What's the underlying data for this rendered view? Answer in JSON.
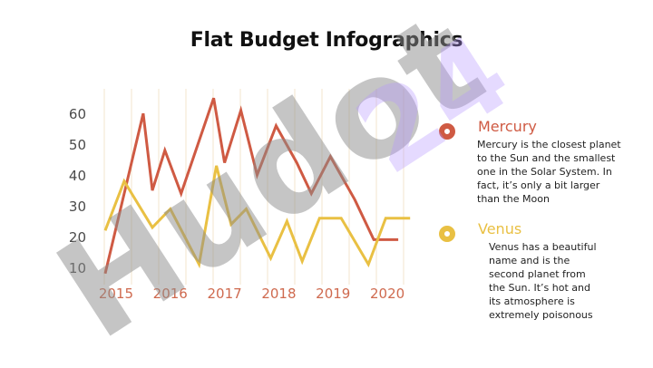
{
  "title": "Flat Budget Infographics",
  "colors": {
    "mercury": "#cf5a43",
    "venus": "#e9c043",
    "grid": "#f3e6cc",
    "axis_text": "#4a4a4a",
    "year_text": "#cf6a4f"
  },
  "chart_data": {
    "type": "line",
    "x_ticks": [
      "2015",
      "2016",
      "2017",
      "2018",
      "2019",
      "2020"
    ],
    "y_ticks": [
      10,
      20,
      30,
      40,
      50,
      60
    ],
    "ylim": [
      5,
      68
    ],
    "xlim": [
      2014.7,
      2020.55
    ],
    "grid": "vertical",
    "series": [
      {
        "name": "Mercury",
        "color": "#cf5a43",
        "x": [
          2014.8,
          2015.5,
          2015.67,
          2015.9,
          2016.2,
          2016.8,
          2017.0,
          2017.3,
          2017.6,
          2017.95,
          2018.33,
          2018.6,
          2018.95,
          2019.4,
          2019.75,
          2020.2
        ],
        "y": [
          8,
          60,
          35,
          48,
          34,
          65,
          44,
          61,
          40,
          56,
          44,
          34,
          46,
          32,
          19,
          19
        ]
      },
      {
        "name": "Venus",
        "color": "#e9c043",
        "x": [
          2014.8,
          2015.15,
          2015.67,
          2016.0,
          2016.53,
          2016.85,
          2017.12,
          2017.4,
          2017.85,
          2018.15,
          2018.43,
          2018.75,
          2019.15,
          2019.65,
          2019.97,
          2020.42
        ],
        "y": [
          22,
          38,
          23,
          29,
          11,
          43,
          24,
          29,
          13,
          25,
          12,
          26,
          26,
          11,
          26,
          26
        ]
      }
    ]
  },
  "legend": [
    {
      "name": "Mercury",
      "color": "#cf5a43",
      "description": "Mercury is the closest planet to the Sun and the smallest one in the Solar System. In fact, it’s only a bit larger than the Moon"
    },
    {
      "name": "Venus",
      "color": "#e9c043",
      "description": "Venus has a beautiful name and is the second planet from the Sun. It’s hot and its atmosphere is extremely poisonous"
    }
  ],
  "watermark": {
    "text_main": "Hudot",
    "text_num": "24"
  }
}
